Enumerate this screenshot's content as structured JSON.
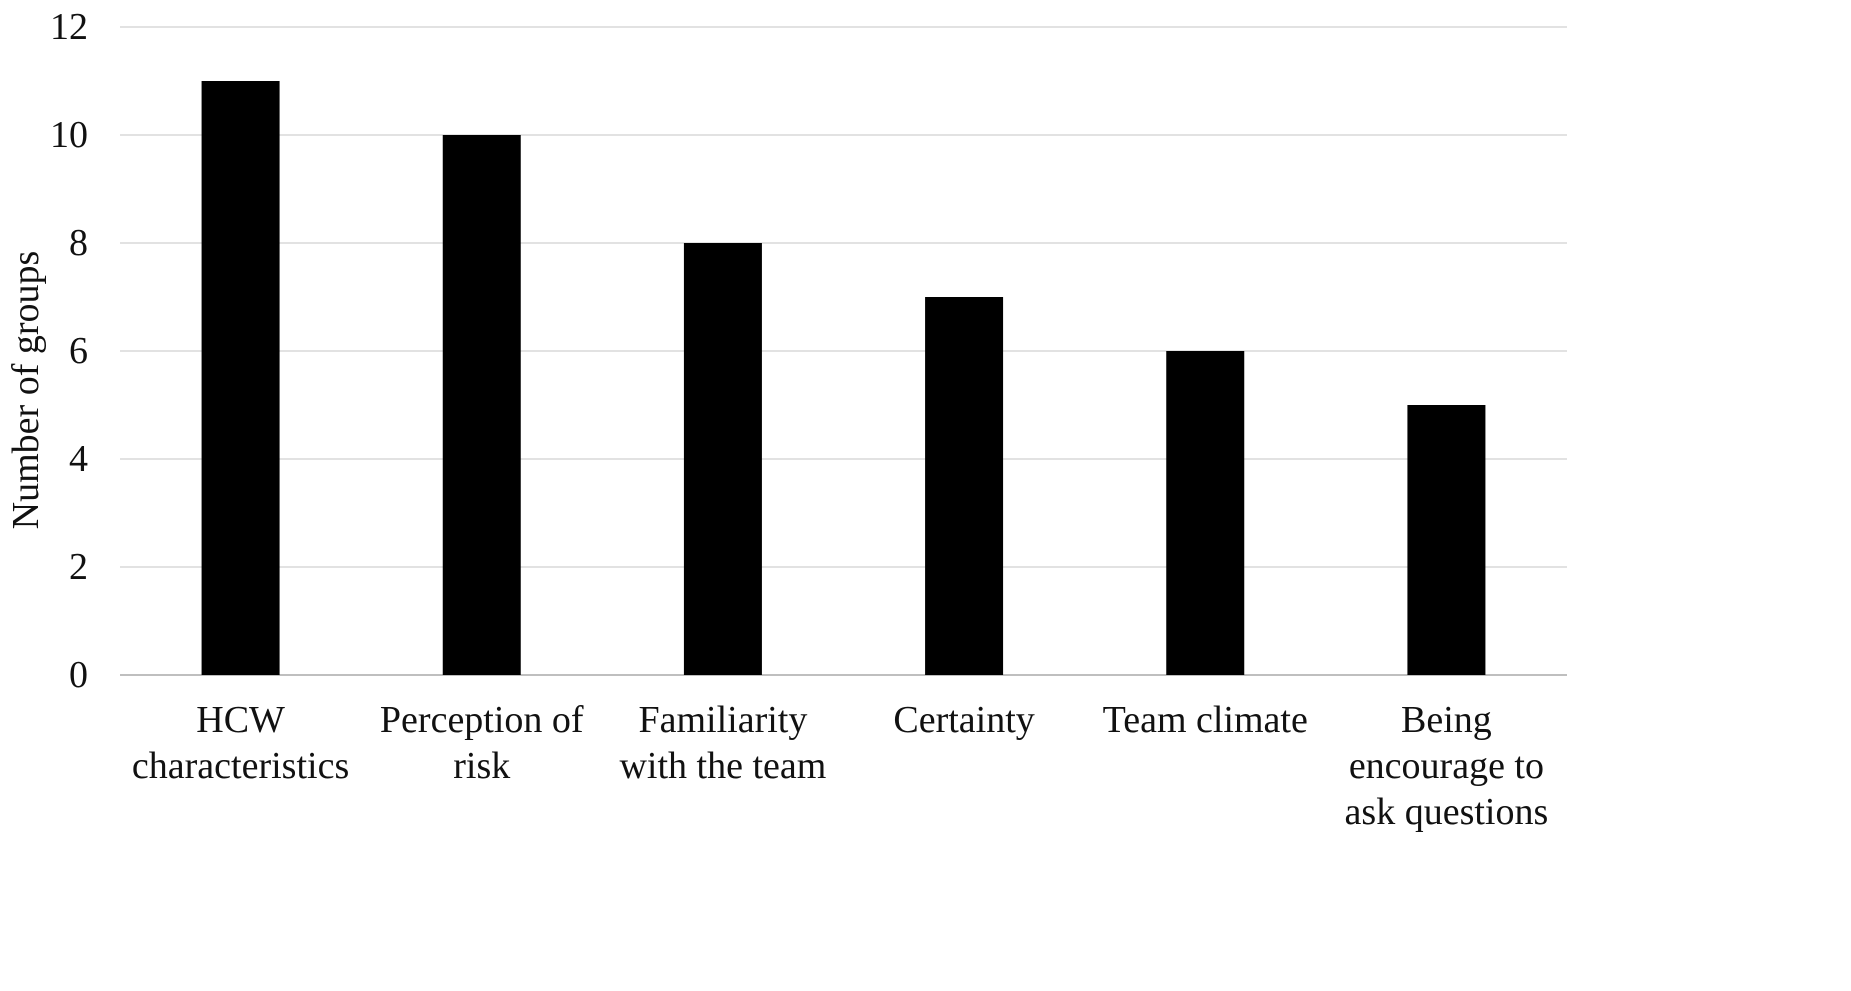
{
  "chart_data": {
    "type": "bar",
    "title": "",
    "xlabel": "",
    "ylabel": "Number of groups",
    "ylim": [
      0,
      12
    ],
    "yticks": [
      0,
      2,
      4,
      6,
      8,
      10,
      12
    ],
    "grid": true,
    "legend": "none",
    "categories": [
      [
        "HCW",
        "characteristics"
      ],
      [
        "Perception of",
        "risk"
      ],
      [
        "Familiarity",
        "with the team"
      ],
      [
        "Certainty"
      ],
      [
        "Team climate"
      ],
      [
        "Being",
        "encourage to",
        "ask questions"
      ]
    ],
    "values": [
      11,
      10,
      8,
      7,
      6,
      5
    ],
    "colors": {
      "bar": "#000000",
      "grid": "#d9d9d9",
      "axis": "#bfbfbf",
      "text": "#111111"
    }
  }
}
